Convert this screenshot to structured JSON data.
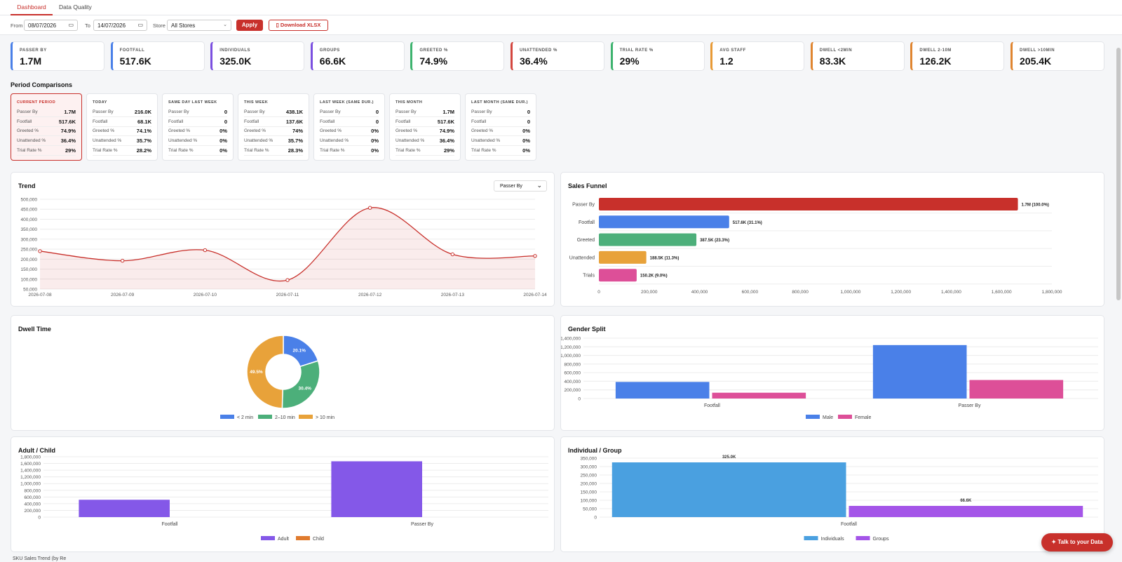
{
  "tabs": [
    "Dashboard",
    "Data Quality"
  ],
  "filters": {
    "from_label": "From",
    "from_value": "08/07/2026",
    "to_label": "To",
    "to_value": "14/07/2026",
    "store_label": "Store",
    "store_value": "All Stores",
    "apply": "Apply",
    "download": "Download XLSX"
  },
  "kpis": [
    {
      "label": "PASSER BY",
      "value": "1.7M",
      "color": "#4a80e8"
    },
    {
      "label": "FOOTFALL",
      "value": "517.6K",
      "color": "#4a80e8"
    },
    {
      "label": "INDIVIDUALS",
      "value": "325.0K",
      "color": "#7b4fe0"
    },
    {
      "label": "GROUPS",
      "value": "66.6K",
      "color": "#7b4fe0"
    },
    {
      "label": "GREETED %",
      "value": "74.9%",
      "color": "#3db36e"
    },
    {
      "label": "UNATTENDED %",
      "value": "36.4%",
      "color": "#d4473f"
    },
    {
      "label": "TRIAL RATE %",
      "value": "29%",
      "color": "#3db36e"
    },
    {
      "label": "AVG STAFF",
      "value": "1.2",
      "color": "#e89a36"
    },
    {
      "label": "DWELL <2MIN",
      "value": "83.3K",
      "color": "#e08530"
    },
    {
      "label": "DWELL 2-10M",
      "value": "126.2K",
      "color": "#e08530"
    },
    {
      "label": "DWELL >10MIN",
      "value": "205.4K",
      "color": "#e08530"
    }
  ],
  "period_title": "Period Comparisons",
  "period_row_labels": [
    "Passer By",
    "Footfall",
    "Greeted %",
    "Unattended %",
    "Trial Rate %"
  ],
  "periods": [
    {
      "title": "CURRENT PERIOD",
      "values": [
        "1.7M",
        "517.6K",
        "74.9%",
        "36.4%",
        "29%"
      ]
    },
    {
      "title": "TODAY",
      "values": [
        "216.0K",
        "68.1K",
        "74.1%",
        "35.7%",
        "28.2%"
      ]
    },
    {
      "title": "SAME DAY LAST WEEK",
      "values": [
        "0",
        "0",
        "0%",
        "0%",
        "0%"
      ]
    },
    {
      "title": "THIS WEEK",
      "values": [
        "438.1K",
        "137.6K",
        "74%",
        "35.7%",
        "28.3%"
      ]
    },
    {
      "title": "LAST WEEK (SAME DUR.)",
      "values": [
        "0",
        "0",
        "0%",
        "0%",
        "0%"
      ]
    },
    {
      "title": "THIS MONTH",
      "values": [
        "1.7M",
        "517.6K",
        "74.9%",
        "36.4%",
        "29%"
      ]
    },
    {
      "title": "LAST MONTH (SAME DUR.)",
      "values": [
        "0",
        "0",
        "0%",
        "0%",
        "0%"
      ]
    }
  ],
  "trend_title": "Trend",
  "trend_select": "Passer By",
  "funnel_title": "Sales Funnel",
  "dwell_title": "Dwell Time",
  "gender_title": "Gender Split",
  "adult_title": "Adult / Child",
  "indiv_title": "Individual / Group",
  "talk_button": "Talk to your Data",
  "footer_text": "SKU Sales Trend (by Re",
  "chart_data": [
    {
      "type": "line",
      "title": "Trend",
      "x": [
        "2026-07-08",
        "2026-07-09",
        "2026-07-10",
        "2026-07-11",
        "2026-07-12",
        "2026-07-13",
        "2026-07-14"
      ],
      "series": [
        {
          "name": "Passer By",
          "values": [
            240000,
            192000,
            245000,
            95000,
            457000,
            224000,
            216000
          ],
          "color": "#c8302b"
        }
      ],
      "ylim": [
        50000,
        500000
      ],
      "yticks": [
        50000,
        100000,
        150000,
        200000,
        250000,
        300000,
        350000,
        400000,
        450000,
        500000
      ]
    },
    {
      "type": "bar",
      "orientation": "horizontal",
      "title": "Sales Funnel",
      "categories": [
        "Passer By",
        "Footfall",
        "Greeted",
        "Unattended",
        "Trials"
      ],
      "values": [
        1665000,
        517600,
        387500,
        188500,
        150200
      ],
      "labels": [
        "1.7M  (100.0%)",
        "517.6K  (31.1%)",
        "387.5K  (23.3%)",
        "188.5K  (11.3%)",
        "150.2K  (9.0%)"
      ],
      "colors": [
        "#c8302b",
        "#4a80e8",
        "#4caf7a",
        "#e8a23a",
        "#dd4f98"
      ],
      "xlim": [
        0,
        1800000
      ],
      "xticks": [
        0,
        200000,
        400000,
        600000,
        800000,
        1000000,
        1200000,
        1400000,
        1600000,
        1800000
      ]
    },
    {
      "type": "pie",
      "title": "Dwell Time",
      "categories": [
        "< 2 min",
        "2–10 min",
        "> 10 min"
      ],
      "values": [
        20.1,
        30.4,
        49.5
      ],
      "labels": [
        "20.1%",
        "30.4%",
        "49.5%"
      ],
      "colors": [
        "#4a80e8",
        "#4caf7a",
        "#e8a23a"
      ]
    },
    {
      "type": "bar",
      "title": "Gender Split",
      "categories": [
        "Footfall",
        "Passer By"
      ],
      "series": [
        {
          "name": "Male",
          "values": [
            385000,
            1240000
          ],
          "color": "#4a80e8"
        },
        {
          "name": "Female",
          "values": [
            135000,
            430000
          ],
          "color": "#dd4f98"
        }
      ],
      "ylim": [
        0,
        1400000
      ],
      "yticks": [
        0,
        200000,
        400000,
        600000,
        800000,
        1000000,
        1200000,
        1400000
      ]
    },
    {
      "type": "bar",
      "title": "Adult / Child",
      "categories": [
        "Footfall",
        "Passer By"
      ],
      "series": [
        {
          "name": "Adult",
          "values": [
            517600,
            1665000
          ],
          "color": "#8458e8"
        },
        {
          "name": "Child",
          "values": [
            0,
            0
          ],
          "color": "#e07b2e"
        }
      ],
      "ylim": [
        0,
        1800000
      ],
      "yticks": [
        0,
        200000,
        400000,
        600000,
        800000,
        1000000,
        1200000,
        1400000,
        1600000,
        1800000
      ]
    },
    {
      "type": "bar",
      "title": "Individual / Group",
      "categories": [
        "Footfall"
      ],
      "series": [
        {
          "name": "Individuals",
          "values": [
            325000
          ],
          "color": "#4aa0e0",
          "label": "325.0K"
        },
        {
          "name": "Groups",
          "values": [
            66600
          ],
          "color": "#a455e8",
          "label": "66.6K"
        }
      ],
      "ylim": [
        0,
        350000
      ],
      "yticks": [
        0,
        50000,
        100000,
        150000,
        200000,
        250000,
        300000,
        350000
      ]
    }
  ]
}
